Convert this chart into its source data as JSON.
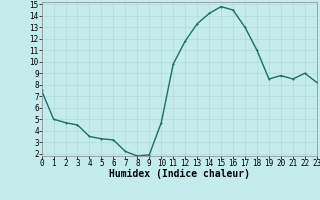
{
  "x": [
    0,
    1,
    2,
    3,
    4,
    5,
    6,
    7,
    8,
    9,
    10,
    11,
    12,
    13,
    14,
    15,
    16,
    17,
    18,
    19,
    20,
    21,
    22,
    23
  ],
  "y": [
    7.5,
    5.0,
    4.7,
    4.5,
    3.5,
    3.3,
    3.2,
    2.2,
    1.8,
    1.9,
    4.7,
    9.8,
    11.8,
    13.3,
    14.2,
    14.8,
    14.5,
    13.0,
    11.0,
    8.5,
    8.8,
    8.5,
    9.0,
    8.2
  ],
  "xlabel": "Humidex (Indice chaleur)",
  "bg_color": "#c5ecec",
  "grid_color": "#aed6d6",
  "line_color": "#1e6e65",
  "marker_color": "#1e6e65",
  "xlim": [
    0,
    23
  ],
  "ylim": [
    1.8,
    15.2
  ],
  "yticks": [
    2,
    3,
    4,
    5,
    6,
    7,
    8,
    9,
    10,
    11,
    12,
    13,
    14,
    15
  ],
  "xticks": [
    0,
    1,
    2,
    3,
    4,
    5,
    6,
    7,
    8,
    9,
    10,
    11,
    12,
    13,
    14,
    15,
    16,
    17,
    18,
    19,
    20,
    21,
    22,
    23
  ],
  "tick_fontsize": 5.5,
  "xlabel_fontsize": 7.0,
  "linewidth": 1.0,
  "markersize": 2.0
}
